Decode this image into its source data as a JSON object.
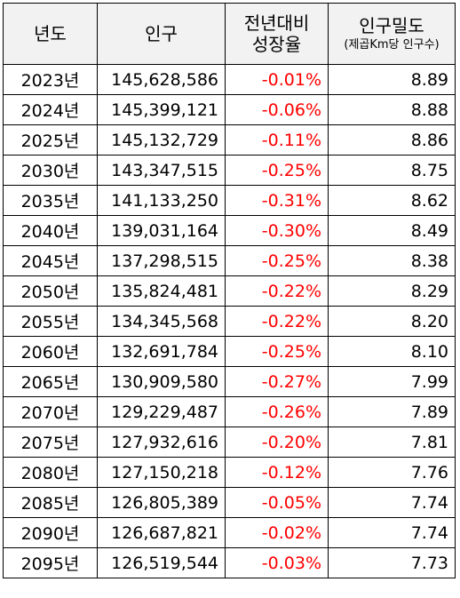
{
  "headers": {
    "year": "년도",
    "population": "인구",
    "growth_line1": "전년대비",
    "growth_line2": "성장율",
    "density_line1": "인구밀도",
    "density_line2": "(제곱Km당 인구수)"
  },
  "rows": [
    {
      "year": "2023년",
      "population": "145,628,586",
      "growth": "-0.01%",
      "density": "8.89"
    },
    {
      "year": "2024년",
      "population": "145,399,121",
      "growth": "-0.06%",
      "density": "8.88"
    },
    {
      "year": "2025년",
      "population": "145,132,729",
      "growth": "-0.11%",
      "density": "8.86"
    },
    {
      "year": "2030년",
      "population": "143,347,515",
      "growth": "-0.25%",
      "density": "8.75"
    },
    {
      "year": "2035년",
      "population": "141,133,250",
      "growth": "-0.31%",
      "density": "8.62"
    },
    {
      "year": "2040년",
      "population": "139,031,164",
      "growth": "-0.30%",
      "density": "8.49"
    },
    {
      "year": "2045년",
      "population": "137,298,515",
      "growth": "-0.25%",
      "density": "8.38"
    },
    {
      "year": "2050년",
      "population": "135,824,481",
      "growth": "-0.22%",
      "density": "8.29"
    },
    {
      "year": "2055년",
      "population": "134,345,568",
      "growth": "-0.22%",
      "density": "8.20"
    },
    {
      "year": "2060년",
      "population": "132,691,784",
      "growth": "-0.25%",
      "density": "8.10"
    },
    {
      "year": "2065년",
      "population": "130,909,580",
      "growth": "-0.27%",
      "density": "7.99"
    },
    {
      "year": "2070년",
      "population": "129,229,487",
      "growth": "-0.26%",
      "density": "7.89"
    },
    {
      "year": "2075년",
      "population": "127,932,616",
      "growth": "-0.20%",
      "density": "7.81"
    },
    {
      "year": "2080년",
      "population": "127,150,218",
      "growth": "-0.12%",
      "density": "7.76"
    },
    {
      "year": "2085년",
      "population": "126,805,389",
      "growth": "-0.05%",
      "density": "7.74"
    },
    {
      "year": "2090년",
      "population": "126,687,821",
      "growth": "-0.02%",
      "density": "7.74"
    },
    {
      "year": "2095년",
      "population": "126,519,544",
      "growth": "-0.03%",
      "density": "7.73"
    }
  ],
  "colors": {
    "negative": "#ff0000",
    "header_bg": "#f2f2f2",
    "border": "#000000"
  }
}
